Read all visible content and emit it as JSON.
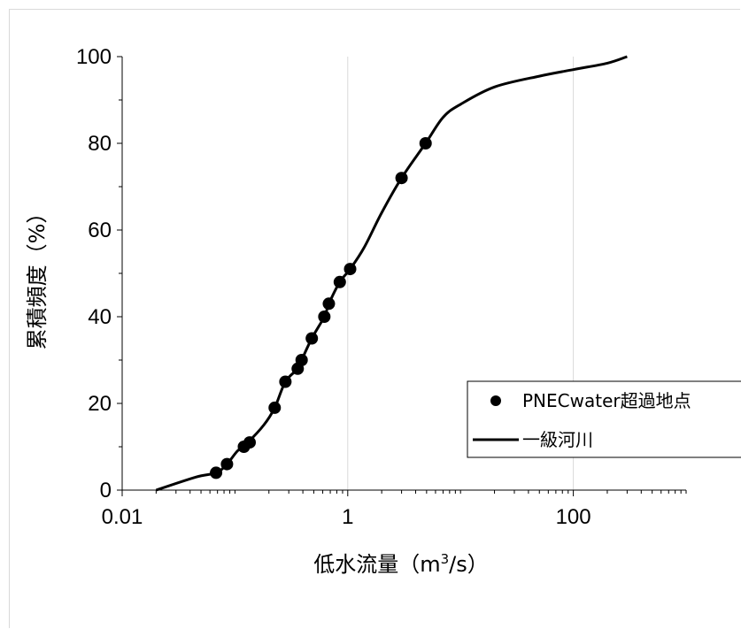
{
  "chart_data": {
    "type": "scatter+line",
    "xscale": "log",
    "xlabel_main": "低水流量（m",
    "xlabel_sup": "3",
    "xlabel_end": "/s）",
    "ylabel": "累積頻度（%）",
    "xlim": [
      0.01,
      1000
    ],
    "ylim": [
      0,
      100
    ],
    "x_ticks": [
      {
        "value": 0.01,
        "label": "0.01"
      },
      {
        "value": 1,
        "label": "1"
      },
      {
        "value": 100,
        "label": "100"
      }
    ],
    "y_ticks": [
      {
        "value": 0,
        "label": "0"
      },
      {
        "value": 20,
        "label": "20"
      },
      {
        "value": 40,
        "label": "40"
      },
      {
        "value": 60,
        "label": "60"
      },
      {
        "value": 80,
        "label": "80"
      },
      {
        "value": 100,
        "label": "100"
      }
    ],
    "gridlines_x": [
      1,
      100
    ],
    "legend_position": "right",
    "series": [
      {
        "name": "PNECwater超過地点",
        "kind": "scatter",
        "color": "#000000",
        "points": [
          [
            0.068,
            4
          ],
          [
            0.085,
            6
          ],
          [
            0.12,
            10
          ],
          [
            0.135,
            11
          ],
          [
            0.225,
            19
          ],
          [
            0.28,
            25
          ],
          [
            0.36,
            28
          ],
          [
            0.39,
            30
          ],
          [
            0.48,
            35
          ],
          [
            0.62,
            40
          ],
          [
            0.68,
            43
          ],
          [
            0.85,
            48
          ],
          [
            1.05,
            51
          ],
          [
            3.0,
            72
          ],
          [
            4.9,
            80
          ]
        ]
      },
      {
        "name": "一級河川",
        "kind": "line",
        "color": "#000000",
        "points": [
          [
            0.02,
            0
          ],
          [
            0.045,
            3
          ],
          [
            0.068,
            4
          ],
          [
            0.085,
            6
          ],
          [
            0.105,
            9
          ],
          [
            0.13,
            11
          ],
          [
            0.18,
            15
          ],
          [
            0.225,
            19
          ],
          [
            0.28,
            25
          ],
          [
            0.36,
            28
          ],
          [
            0.39,
            30
          ],
          [
            0.48,
            35
          ],
          [
            0.62,
            40
          ],
          [
            0.68,
            43
          ],
          [
            0.85,
            48
          ],
          [
            1.05,
            51
          ],
          [
            1.4,
            56
          ],
          [
            2.0,
            64
          ],
          [
            3.0,
            72
          ],
          [
            4.9,
            80
          ],
          [
            7.0,
            86
          ],
          [
            10.0,
            89
          ],
          [
            20.0,
            93
          ],
          [
            50.0,
            95.5
          ],
          [
            100.0,
            97
          ],
          [
            200.0,
            98.5
          ],
          [
            300.0,
            100
          ]
        ]
      }
    ]
  }
}
